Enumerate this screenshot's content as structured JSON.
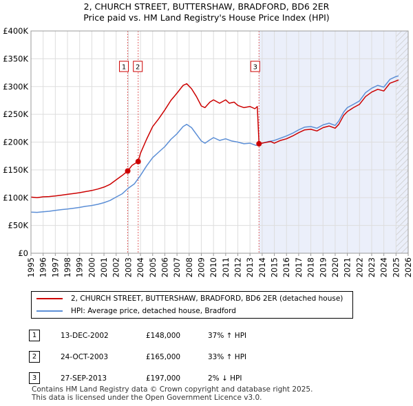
{
  "header": {
    "title": "2, CHURCH STREET, BUTTERSHAW, BRADFORD, BD6 2ER",
    "subtitle": "Price paid vs. HM Land Registry's House Price Index (HPI)"
  },
  "chart_data": {
    "type": "line",
    "xlim": [
      1995,
      2026
    ],
    "ylim": [
      0,
      400000
    ],
    "x_ticks": [
      "1995",
      "1996",
      "1997",
      "1998",
      "1999",
      "2000",
      "2001",
      "2002",
      "2003",
      "2004",
      "2005",
      "2006",
      "2007",
      "2008",
      "2009",
      "2010",
      "2011",
      "2012",
      "2013",
      "2014",
      "2015",
      "2016",
      "2017",
      "2018",
      "2019",
      "2020",
      "2021",
      "2022",
      "2023",
      "2024",
      "2025",
      "2026"
    ],
    "y_ticks": [
      {
        "value": 0,
        "label": "£0"
      },
      {
        "value": 50000,
        "label": "£50K"
      },
      {
        "value": 100000,
        "label": "£100K"
      },
      {
        "value": 150000,
        "label": "£150K"
      },
      {
        "value": 200000,
        "label": "£200K"
      },
      {
        "value": 250000,
        "label": "£250K"
      },
      {
        "value": 300000,
        "label": "£300K"
      },
      {
        "value": 350000,
        "label": "£350K"
      },
      {
        "value": 400000,
        "label": "£400K"
      }
    ],
    "shaded_region": {
      "from": 2013.74,
      "to": 2026
    },
    "hatched_region": {
      "from": 2025.0,
      "to": 2026
    },
    "series": [
      {
        "name": "2, CHURCH STREET, BUTTERSHAW, BRADFORD, BD6 2ER (detached house)",
        "color": "#cc0000",
        "points": [
          [
            1995.0,
            101000
          ],
          [
            1995.5,
            100000
          ],
          [
            1996.0,
            101500
          ],
          [
            1996.5,
            102000
          ],
          [
            1997.0,
            103000
          ],
          [
            1997.5,
            104500
          ],
          [
            1998.0,
            106000
          ],
          [
            1998.5,
            107500
          ],
          [
            1999.0,
            109000
          ],
          [
            1999.5,
            111000
          ],
          [
            2000.0,
            113000
          ],
          [
            2000.5,
            115500
          ],
          [
            2001.0,
            119000
          ],
          [
            2001.5,
            124000
          ],
          [
            2002.0,
            132000
          ],
          [
            2002.5,
            140000
          ],
          [
            2002.95,
            148000
          ],
          [
            2003.3,
            158000
          ],
          [
            2003.81,
            165000
          ],
          [
            2004.0,
            180000
          ],
          [
            2004.5,
            205000
          ],
          [
            2005.0,
            228000
          ],
          [
            2005.5,
            242000
          ],
          [
            2006.0,
            258000
          ],
          [
            2006.5,
            275000
          ],
          [
            2007.0,
            288000
          ],
          [
            2007.5,
            302000
          ],
          [
            2007.8,
            305000
          ],
          [
            2008.2,
            296000
          ],
          [
            2008.6,
            282000
          ],
          [
            2009.0,
            265000
          ],
          [
            2009.3,
            262000
          ],
          [
            2009.7,
            272000
          ],
          [
            2010.0,
            276000
          ],
          [
            2010.5,
            270000
          ],
          [
            2011.0,
            276000
          ],
          [
            2011.3,
            270000
          ],
          [
            2011.7,
            272000
          ],
          [
            2012.0,
            266000
          ],
          [
            2012.5,
            262000
          ],
          [
            2013.0,
            264000
          ],
          [
            2013.4,
            260000
          ],
          [
            2013.6,
            264000
          ],
          [
            2013.74,
            197000
          ],
          [
            2014.2,
            199000
          ],
          [
            2014.7,
            201000
          ],
          [
            2015.0,
            198000
          ],
          [
            2015.5,
            203000
          ],
          [
            2016.0,
            206000
          ],
          [
            2016.5,
            211000
          ],
          [
            2017.0,
            217000
          ],
          [
            2017.5,
            222000
          ],
          [
            2018.0,
            223000
          ],
          [
            2018.5,
            220000
          ],
          [
            2019.0,
            226000
          ],
          [
            2019.5,
            229000
          ],
          [
            2020.0,
            225000
          ],
          [
            2020.3,
            232000
          ],
          [
            2020.7,
            248000
          ],
          [
            2021.0,
            255000
          ],
          [
            2021.5,
            262000
          ],
          [
            2022.0,
            268000
          ],
          [
            2022.5,
            282000
          ],
          [
            2023.0,
            290000
          ],
          [
            2023.5,
            295000
          ],
          [
            2024.0,
            292000
          ],
          [
            2024.5,
            306000
          ],
          [
            2025.0,
            310000
          ],
          [
            2025.2,
            312000
          ]
        ]
      },
      {
        "name": "HPI: Average price, detached house, Bradford",
        "color": "#5b8ed6",
        "points": [
          [
            1995.0,
            74000
          ],
          [
            1995.5,
            73500
          ],
          [
            1996.0,
            74500
          ],
          [
            1996.5,
            75500
          ],
          [
            1997.0,
            77000
          ],
          [
            1997.5,
            78500
          ],
          [
            1998.0,
            79500
          ],
          [
            1998.5,
            81000
          ],
          [
            1999.0,
            82500
          ],
          [
            1999.5,
            84500
          ],
          [
            2000.0,
            86000
          ],
          [
            2000.5,
            88000
          ],
          [
            2001.0,
            91000
          ],
          [
            2001.5,
            95000
          ],
          [
            2002.0,
            101000
          ],
          [
            2002.5,
            107000
          ],
          [
            2003.0,
            117000
          ],
          [
            2003.5,
            125000
          ],
          [
            2004.0,
            140000
          ],
          [
            2004.5,
            157000
          ],
          [
            2005.0,
            172000
          ],
          [
            2005.5,
            182000
          ],
          [
            2006.0,
            192000
          ],
          [
            2006.5,
            205000
          ],
          [
            2007.0,
            215000
          ],
          [
            2007.5,
            228000
          ],
          [
            2007.8,
            232000
          ],
          [
            2008.2,
            226000
          ],
          [
            2008.6,
            214000
          ],
          [
            2009.0,
            202000
          ],
          [
            2009.3,
            198000
          ],
          [
            2009.7,
            204000
          ],
          [
            2010.0,
            208000
          ],
          [
            2010.5,
            203000
          ],
          [
            2011.0,
            206000
          ],
          [
            2011.5,
            202000
          ],
          [
            2012.0,
            200000
          ],
          [
            2012.5,
            197000
          ],
          [
            2013.0,
            198000
          ],
          [
            2013.5,
            194000
          ],
          [
            2014.0,
            198000
          ],
          [
            2014.5,
            201000
          ],
          [
            2015.0,
            203000
          ],
          [
            2015.5,
            207000
          ],
          [
            2016.0,
            211000
          ],
          [
            2016.5,
            216000
          ],
          [
            2017.0,
            222000
          ],
          [
            2017.5,
            227000
          ],
          [
            2018.0,
            228000
          ],
          [
            2018.5,
            225000
          ],
          [
            2019.0,
            231000
          ],
          [
            2019.5,
            234000
          ],
          [
            2020.0,
            230000
          ],
          [
            2020.3,
            238000
          ],
          [
            2020.7,
            254000
          ],
          [
            2021.0,
            262000
          ],
          [
            2021.5,
            268000
          ],
          [
            2022.0,
            274000
          ],
          [
            2022.5,
            289000
          ],
          [
            2023.0,
            297000
          ],
          [
            2023.5,
            302000
          ],
          [
            2024.0,
            299000
          ],
          [
            2024.5,
            313000
          ],
          [
            2025.0,
            318000
          ],
          [
            2025.2,
            319000
          ]
        ]
      }
    ],
    "sales": [
      {
        "marker": "1",
        "x": 2002.95,
        "value": 148000
      },
      {
        "marker": "2",
        "x": 2003.81,
        "value": 165000
      },
      {
        "marker": "3",
        "x": 2013.74,
        "value": 197000
      }
    ]
  },
  "legend": {
    "property_label": "2, CHURCH STREET, BUTTERSHAW, BRADFORD, BD6 2ER (detached house)",
    "hpi_label": "HPI: Average price, detached house, Bradford"
  },
  "transactions": [
    {
      "num": "1",
      "date": "13-DEC-2002",
      "price": "£148,000",
      "hpi": "37% ↑ HPI"
    },
    {
      "num": "2",
      "date": "24-OCT-2003",
      "price": "£165,000",
      "hpi": "33% ↑ HPI"
    },
    {
      "num": "3",
      "date": "27-SEP-2013",
      "price": "£197,000",
      "hpi": "2% ↓ HPI"
    }
  ],
  "footer": {
    "line1": "Contains HM Land Registry data © Crown copyright and database right 2025.",
    "line2": "This data is licensed under the Open Government Licence v3.0."
  }
}
